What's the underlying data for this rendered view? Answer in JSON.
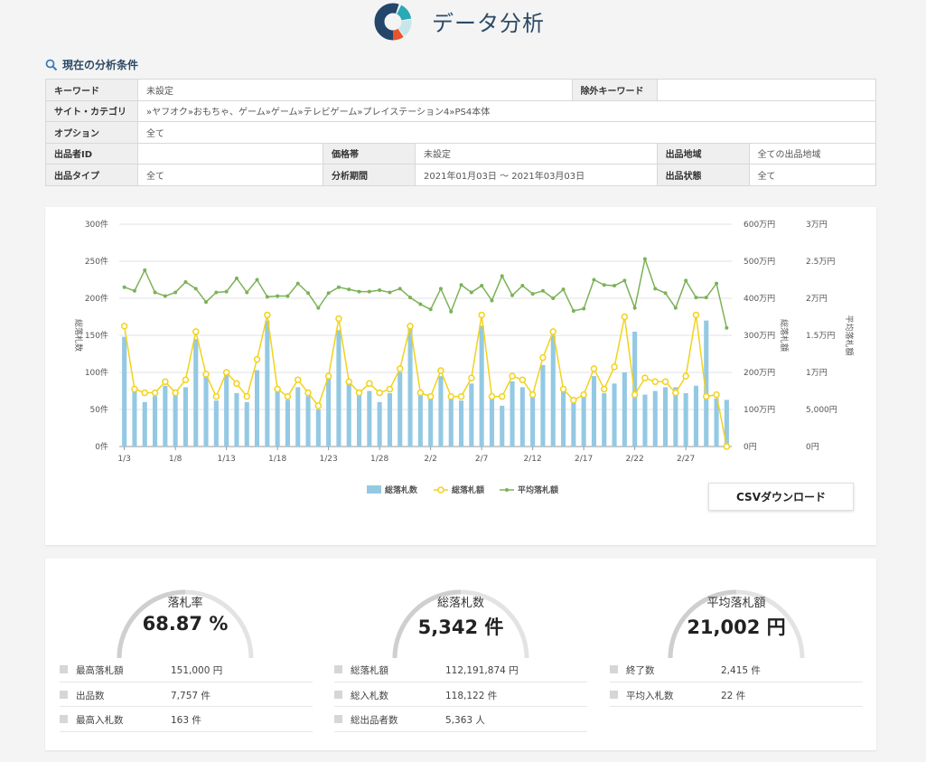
{
  "header": {
    "title": "データ分析",
    "logo_icon": "donut-chart-icon"
  },
  "conditions": {
    "heading": "現在の分析条件",
    "keyword_label": "キーワード",
    "keyword_value": "未設定",
    "exclude_label": "除外キーワード",
    "exclude_value": "",
    "site_label": "サイト・カテゴリ",
    "site_value": "»ヤフオク»おもちゃ、ゲーム»ゲーム»テレビゲーム»プレイステーション4»PS4本体",
    "option_label": "オプション",
    "option_value": "全て",
    "seller_label": "出品者ID",
    "seller_value": "",
    "price_label": "価格帯",
    "price_value": "未設定",
    "region_label": "出品地域",
    "region_value": "全ての出品地域",
    "type_label": "出品タイプ",
    "type_value": "全て",
    "period_label": "分析期間",
    "period_value": "2021年01月03日 ～ 2021年03月03日",
    "state_label": "出品状態",
    "state_value": "全て"
  },
  "chart_data": {
    "type": "bar",
    "categories": [
      "1/3",
      "1/4",
      "1/5",
      "1/6",
      "1/7",
      "1/8",
      "1/9",
      "1/10",
      "1/11",
      "1/12",
      "1/13",
      "1/14",
      "1/15",
      "1/16",
      "1/17",
      "1/18",
      "1/19",
      "1/20",
      "1/21",
      "1/22",
      "1/23",
      "1/24",
      "1/25",
      "1/26",
      "1/27",
      "1/28",
      "1/29",
      "1/30",
      "1/31",
      "2/1",
      "2/2",
      "2/3",
      "2/4",
      "2/5",
      "2/6",
      "2/7",
      "2/8",
      "2/9",
      "2/10",
      "2/11",
      "2/12",
      "2/13",
      "2/14",
      "2/15",
      "2/16",
      "2/17",
      "2/18",
      "2/19",
      "2/20",
      "2/21",
      "2/22",
      "2/23",
      "2/24",
      "2/25",
      "2/26",
      "2/27",
      "2/28",
      "3/1",
      "3/2",
      "3/3"
    ],
    "x_tick_labels": [
      "1/3",
      "1/8",
      "1/13",
      "1/18",
      "1/23",
      "1/28",
      "2/2",
      "2/7",
      "2/12",
      "2/17",
      "2/22",
      "2/27"
    ],
    "series": [
      {
        "name": "総落札数",
        "type": "bar",
        "axis": "left",
        "color": "#93c9e3",
        "values": [
          148,
          75,
          60,
          68,
          82,
          70,
          80,
          145,
          95,
          62,
          98,
          72,
          60,
          103,
          170,
          78,
          63,
          80,
          68,
          50,
          92,
          157,
          85,
          70,
          75,
          60,
          72,
          100,
          160,
          72,
          65,
          95,
          65,
          62,
          85,
          163,
          65,
          55,
          88,
          80,
          68,
          110,
          150,
          75,
          62,
          72,
          95,
          72,
          85,
          100,
          155,
          70,
          75,
          80,
          80,
          72,
          82,
          170,
          65,
          63
        ]
      },
      {
        "name": "総落札額",
        "type": "line",
        "axis": "left2",
        "color": "#f2d21b",
        "values": [
          325,
          155,
          145,
          145,
          175,
          145,
          180,
          310,
          195,
          135,
          200,
          170,
          135,
          235,
          355,
          155,
          135,
          180,
          145,
          110,
          190,
          345,
          175,
          145,
          170,
          145,
          155,
          210,
          325,
          145,
          135,
          205,
          135,
          135,
          185,
          355,
          135,
          135,
          190,
          180,
          140,
          240,
          310,
          155,
          125,
          140,
          210,
          155,
          215,
          350,
          140,
          185,
          175,
          175,
          145,
          190,
          355,
          135,
          140,
          0
        ]
      },
      {
        "name": "平均落札額",
        "type": "line",
        "axis": "right",
        "color": "#7cb257",
        "values": [
          21500,
          21000,
          23800,
          20800,
          20300,
          20800,
          22200,
          21300,
          19500,
          20800,
          20900,
          22700,
          20800,
          22500,
          20200,
          20300,
          20300,
          22000,
          20700,
          18700,
          20700,
          21500,
          21200,
          20900,
          20900,
          21100,
          20800,
          21300,
          20100,
          19200,
          18500,
          21300,
          18200,
          21800,
          20800,
          21700,
          19700,
          23000,
          20400,
          21700,
          20600,
          21000,
          20000,
          21200,
          18300,
          18600,
          22500,
          21800,
          21700,
          22400,
          18700,
          25300,
          21300,
          20700,
          18700,
          22400,
          20100,
          20100,
          22000,
          16000
        ]
      }
    ],
    "left_axis": {
      "label": "総落札数",
      "ticks": [
        "0件",
        "50件",
        "100件",
        "150件",
        "200件",
        "250件",
        "300件"
      ],
      "range": [
        0,
        300
      ]
    },
    "left2_axis": {
      "label": "総落札額",
      "ticks": [
        "0円",
        "100万円",
        "200万円",
        "300万円",
        "400万円",
        "500万円",
        "600万円"
      ],
      "range": [
        0,
        600
      ]
    },
    "right_axis": {
      "label": "平均落札額",
      "ticks": [
        "0円",
        "5,000円",
        "1万円",
        "1.5万円",
        "2万円",
        "2.5万円",
        "3万円"
      ],
      "range": [
        0,
        30000
      ]
    },
    "legend": [
      "総落札数",
      "総落札額",
      "平均落札額"
    ],
    "legend_position": "bottom"
  },
  "csv_button": "CSVダウンロード",
  "stats": {
    "gauges": [
      {
        "label": "落札率",
        "value": "68.87 %"
      },
      {
        "label": "総落札数",
        "value": "5,342 件"
      },
      {
        "label": "平均落札額",
        "value": "21,002 円"
      }
    ],
    "lists": [
      [
        {
          "k": "最高落札額",
          "v": "151,000 円"
        },
        {
          "k": "出品数",
          "v": "7,757 件"
        },
        {
          "k": "最高入札数",
          "v": "163 件"
        }
      ],
      [
        {
          "k": "総落札額",
          "v": "112,191,874 円"
        },
        {
          "k": "総入札数",
          "v": "118,122 件"
        },
        {
          "k": "総出品者数",
          "v": "5,363 人"
        }
      ],
      [
        {
          "k": "終了数",
          "v": "2,415 件"
        },
        {
          "k": "平均入札数",
          "v": "22 件"
        }
      ]
    ]
  }
}
